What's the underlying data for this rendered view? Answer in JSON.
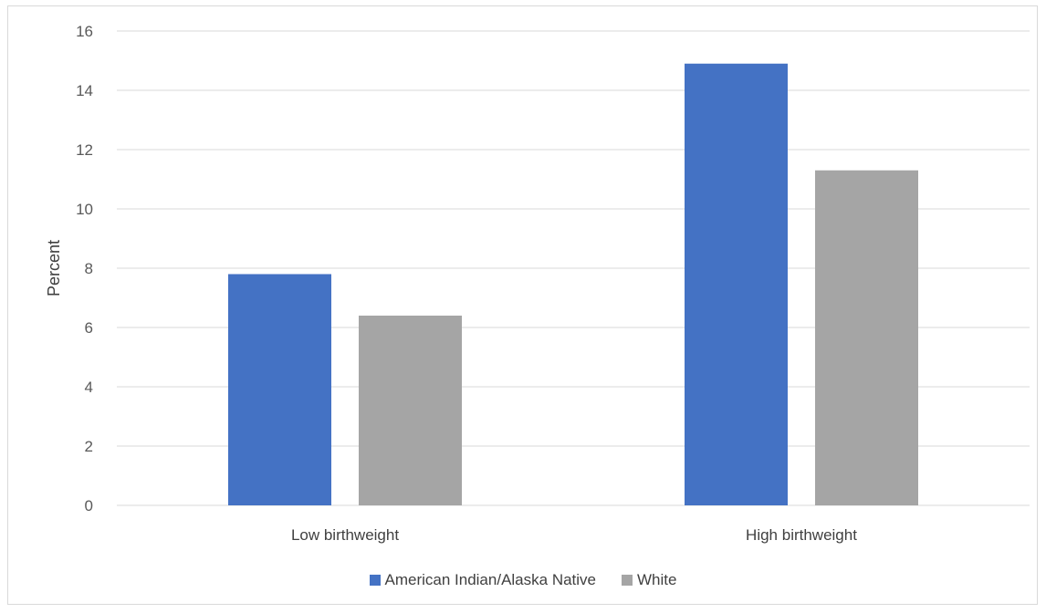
{
  "chart_data": {
    "type": "bar",
    "categories": [
      "Low birthweight",
      "High birthweight"
    ],
    "series": [
      {
        "name": "American Indian/Alaska Native",
        "values": [
          7.8,
          14.9
        ],
        "color": "#4472c4"
      },
      {
        "name": "White",
        "values": [
          6.4,
          11.3
        ],
        "color": "#a5a5a5"
      }
    ],
    "title": "",
    "xlabel": "",
    "ylabel": "Percent",
    "ylim": [
      0,
      16
    ],
    "yticks": [
      "0",
      "2",
      "4",
      "6",
      "8",
      "10",
      "12",
      "14",
      "16"
    ],
    "grid": true,
    "legend_position": "bottom"
  }
}
